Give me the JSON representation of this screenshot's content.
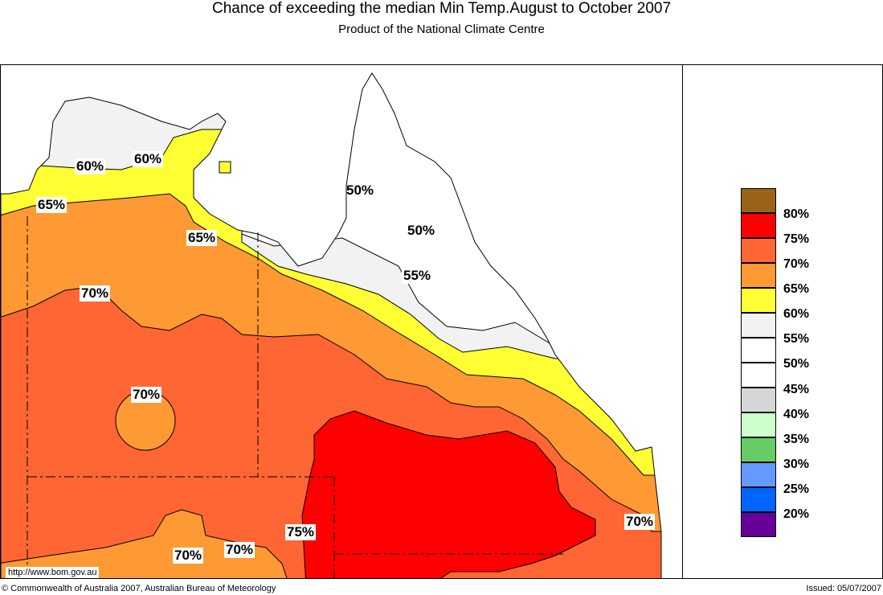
{
  "title": "Chance of exceeding the median Min Temp.August to October 2007",
  "subtitle": "Product of the National Climate Centre",
  "map": {
    "url_label": "http://www.bom.gov.au",
    "contour_labels": [
      "60%",
      "60%",
      "65%",
      "65%",
      "50%",
      "50%",
      "55%",
      "70%",
      "70%",
      "75%",
      "70%",
      "70%",
      "70%"
    ]
  },
  "legend": {
    "colors": [
      "#996319",
      "#ff0000",
      "#ff6633",
      "#ff9933",
      "#ffff33",
      "#f2f2f2",
      "#ffffff",
      "#ffffff",
      "#d6d6d6",
      "#ccffcc",
      "#66cc66",
      "#6699ff",
      "#0066ff",
      "#660099"
    ],
    "labels": [
      "80%",
      "75%",
      "70%",
      "65%",
      "60%",
      "55%",
      "50%",
      "45%",
      "40%",
      "35%",
      "30%",
      "25%",
      "20%"
    ]
  },
  "footer": {
    "copyright": "© Commonwealth of Australia 2007, Australian Bureau of Meteorology",
    "issued": "Issued: 05/07/2007"
  }
}
